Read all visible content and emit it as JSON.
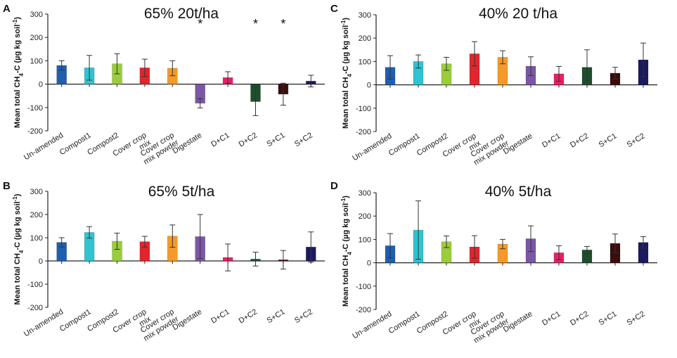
{
  "figure": {
    "colors": [
      "#1f5fb0",
      "#2ec4d0",
      "#9bcc3d",
      "#e0262c",
      "#f39a2a",
      "#7b57a6",
      "#e81f6a",
      "#1e4d2b",
      "#3b0d0d",
      "#1b1a5e"
    ]
  },
  "chart_data": [
    {
      "type": "bar",
      "panel": "A",
      "title": "65% 20t/ha",
      "xlabel": "",
      "ylabel": "Mean total CH4-C (µg kg soil-1)",
      "ylim": [
        -200,
        300
      ],
      "yticks": [
        300,
        200,
        100,
        0,
        -100,
        -200
      ],
      "categories": [
        "Un-amended",
        "Compost1",
        "Compost2",
        "Cover crop mix",
        "Cover crop mix powder",
        "Digestate",
        "D+C1",
        "D+C2",
        "S+C1",
        "S+C2"
      ],
      "values": [
        80,
        70,
        87,
        70,
        68,
        -82,
        28,
        -75,
        -43,
        13
      ],
      "errors": [
        20,
        53,
        43,
        37,
        32,
        20,
        25,
        60,
        47,
        25
      ],
      "significant": [
        false,
        false,
        false,
        false,
        false,
        true,
        false,
        true,
        true,
        false
      ],
      "significance_marker": "*"
    },
    {
      "type": "bar",
      "panel": "B",
      "title": "65% 5t/ha",
      "xlabel": "",
      "ylabel": "Mean total CH4-C (µg kg soil-1)",
      "ylim": [
        -200,
        300
      ],
      "yticks": [
        300,
        200,
        100,
        0,
        -100,
        -200
      ],
      "categories": [
        "Un-amended",
        "Compost1",
        "Compost2",
        "Cover crop mix",
        "Cover crop mix powder",
        "Digestate",
        "D+C1",
        "D+C2",
        "S+C1",
        "S+C2"
      ],
      "values": [
        80,
        123,
        85,
        83,
        107,
        105,
        15,
        8,
        5,
        60
      ],
      "errors": [
        20,
        25,
        35,
        23,
        48,
        95,
        58,
        30,
        40,
        65
      ],
      "significant": [
        false,
        false,
        false,
        false,
        false,
        false,
        false,
        false,
        false,
        false
      ],
      "significance_marker": "*"
    },
    {
      "type": "bar",
      "panel": "C",
      "title": "40% 20 t/ha",
      "xlabel": "",
      "ylabel": "Mean total CH4-C (µg kg soil-1)",
      "ylim": [
        -200,
        300
      ],
      "yticks": [
        300,
        200,
        100,
        0,
        -100,
        -200
      ],
      "categories": [
        "Un-amended",
        "Compost1",
        "Compost2",
        "Cover crop mix",
        "Cover crop mix powder",
        "Digestate",
        "D+C1",
        "D+C2",
        "S+C1",
        "S+C2"
      ],
      "values": [
        75,
        100,
        90,
        133,
        118,
        80,
        47,
        75,
        50,
        107
      ],
      "errors": [
        50,
        28,
        28,
        52,
        28,
        40,
        32,
        75,
        25,
        72
      ],
      "significant": [
        false,
        false,
        false,
        false,
        false,
        false,
        false,
        false,
        false,
        false
      ],
      "significance_marker": "*"
    },
    {
      "type": "bar",
      "panel": "D",
      "title": "40% 5t/ha",
      "xlabel": "",
      "ylabel": "Mean total CH4-C (µg kg soil-1)",
      "ylim": [
        -200,
        300
      ],
      "yticks": [
        300,
        200,
        100,
        0,
        -100,
        -200
      ],
      "categories": [
        "Un-amended",
        "Compost1",
        "Compost2",
        "Cover crop mix",
        "Cover crop mix powder",
        "Digestate",
        "D+C1",
        "D+C2",
        "S+C1",
        "S+C2"
      ],
      "values": [
        73,
        140,
        90,
        68,
        80,
        103,
        43,
        55,
        83,
        87
      ],
      "errors": [
        52,
        125,
        25,
        48,
        20,
        55,
        30,
        15,
        40,
        25
      ],
      "significant": [
        false,
        false,
        false,
        false,
        false,
        false,
        false,
        false,
        false,
        false
      ],
      "significance_marker": "*"
    }
  ]
}
